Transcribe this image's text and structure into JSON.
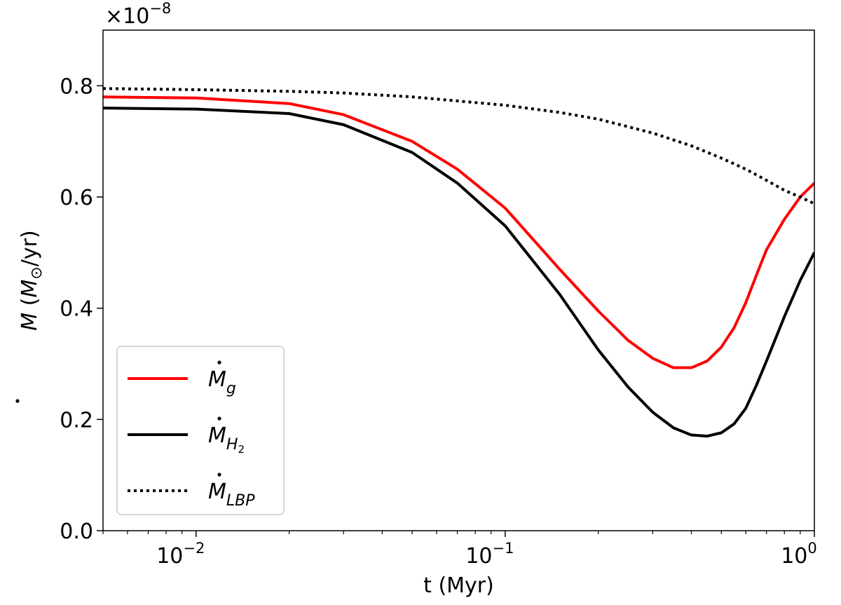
{
  "chart_data": {
    "type": "line",
    "xscale": "log",
    "xlim": [
      0.005,
      1.0
    ],
    "ylim": [
      0.0,
      0.9
    ],
    "xlabel": "t (Myr)",
    "ylabel_parts": {
      "symbol": "M",
      "rest": " (M",
      "sun": "⊙",
      "tail": "/yr)"
    },
    "y_multiplier": {
      "base": "×10",
      "exponent": "−8"
    },
    "x_ticks": [
      {
        "value": 0.01,
        "base": "10",
        "exponent": "−2"
      },
      {
        "value": 0.1,
        "base": "10",
        "exponent": "−1"
      },
      {
        "value": 1.0,
        "base": "10",
        "exponent": "0"
      }
    ],
    "y_ticks": [
      {
        "value": 0.0,
        "label": "0.0"
      },
      {
        "value": 0.2,
        "label": "0.2"
      },
      {
        "value": 0.4,
        "label": "0.4"
      },
      {
        "value": 0.6,
        "label": "0.6"
      },
      {
        "value": 0.8,
        "label": "0.8"
      }
    ],
    "series": [
      {
        "name": "M_g",
        "legend_symbol": "M",
        "legend_sub": "g",
        "color": "#ff0000",
        "dash": "solid",
        "x": [
          0.005,
          0.01,
          0.02,
          0.03,
          0.05,
          0.07,
          0.1,
          0.15,
          0.2,
          0.25,
          0.3,
          0.35,
          0.4,
          0.45,
          0.5,
          0.55,
          0.6,
          0.65,
          0.7,
          0.8,
          0.9,
          1.0
        ],
        "y": [
          0.78,
          0.778,
          0.768,
          0.748,
          0.7,
          0.65,
          0.58,
          0.47,
          0.395,
          0.342,
          0.31,
          0.293,
          0.293,
          0.305,
          0.33,
          0.365,
          0.41,
          0.46,
          0.505,
          0.56,
          0.6,
          0.625
        ]
      },
      {
        "name": "M_H2",
        "legend_symbol": "M",
        "legend_sub": "H",
        "legend_subsub": "2",
        "color": "#000000",
        "dash": "solid",
        "x": [
          0.005,
          0.01,
          0.02,
          0.03,
          0.05,
          0.07,
          0.1,
          0.15,
          0.2,
          0.25,
          0.3,
          0.35,
          0.4,
          0.45,
          0.5,
          0.55,
          0.6,
          0.65,
          0.7,
          0.8,
          0.9,
          1.0
        ],
        "y": [
          0.76,
          0.758,
          0.75,
          0.73,
          0.68,
          0.625,
          0.548,
          0.425,
          0.325,
          0.258,
          0.213,
          0.185,
          0.172,
          0.17,
          0.176,
          0.192,
          0.22,
          0.262,
          0.305,
          0.385,
          0.45,
          0.5
        ]
      },
      {
        "name": "M_LBP",
        "legend_symbol": "M",
        "legend_sub": "LBP",
        "color": "#000000",
        "dash": "dotted",
        "x": [
          0.005,
          0.01,
          0.02,
          0.03,
          0.05,
          0.1,
          0.15,
          0.2,
          0.3,
          0.4,
          0.5,
          0.6,
          0.7,
          0.8,
          0.9,
          1.0
        ],
        "y": [
          0.795,
          0.793,
          0.79,
          0.787,
          0.78,
          0.765,
          0.752,
          0.74,
          0.715,
          0.692,
          0.67,
          0.65,
          0.63,
          0.612,
          0.6,
          0.588
        ]
      }
    ],
    "legend_position": "lower-left"
  }
}
